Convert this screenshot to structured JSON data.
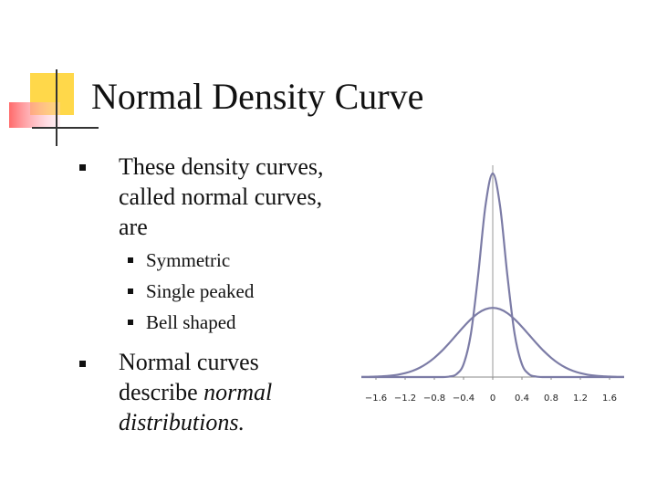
{
  "header": {
    "title": "Normal Density Curve"
  },
  "bullets": [
    {
      "lines": [
        "These density curves,",
        "called normal curves,",
        "are"
      ],
      "sub": [
        "Symmetric",
        "Single peaked",
        "Bell shaped"
      ]
    },
    {
      "lines": [
        {
          "text": "Normal curves"
        },
        {
          "text": "describe",
          "italic_text": "normal"
        },
        {
          "italic_text": "distributions."
        }
      ]
    }
  ],
  "chart_data": {
    "type": "line",
    "x": [
      -1.8,
      -1.7,
      -1.6,
      -1.5,
      -1.4,
      -1.3,
      -1.2,
      -1.1,
      -1.0,
      -0.9,
      -0.8,
      -0.7,
      -0.6,
      -0.5,
      -0.4,
      -0.3,
      -0.2,
      -0.1,
      0,
      0.1,
      0.2,
      0.3,
      0.4,
      0.5,
      0.6,
      0.7,
      0.8,
      0.9,
      1.0,
      1.1,
      1.2,
      1.3,
      1.4,
      1.5,
      1.6,
      1.7,
      1.8
    ],
    "series": [
      {
        "color": "#7c7ca6",
        "values": [
          0.001,
          0.002,
          0.005,
          0.009,
          0.016,
          0.027,
          0.045,
          0.071,
          0.108,
          0.158,
          0.222,
          0.299,
          0.388,
          0.484,
          0.579,
          0.666,
          0.737,
          0.782,
          0.798,
          0.782,
          0.737,
          0.666,
          0.579,
          0.484,
          0.388,
          0.299,
          0.222,
          0.158,
          0.108,
          0.071,
          0.045,
          0.027,
          0.016,
          0.009,
          0.005,
          0.002,
          0.001
        ]
      },
      {
        "color": "#7c7ca6",
        "values": [
          0,
          0,
          0,
          0,
          0,
          0,
          0,
          0,
          0,
          0,
          0,
          0,
          0.005,
          0.031,
          0.147,
          0.495,
          1.175,
          1.974,
          2.347,
          1.974,
          1.175,
          0.495,
          0.147,
          0.031,
          0.005,
          0,
          0,
          0,
          0,
          0,
          0,
          0,
          0,
          0,
          0,
          0,
          0
        ]
      }
    ],
    "xlim": [
      -1.8,
      1.8
    ],
    "ylim": [
      0,
      2.4
    ],
    "xticks": [
      {
        "value": -1.6,
        "label": "−1.6"
      },
      {
        "value": -1.2,
        "label": "−1.2"
      },
      {
        "value": -0.8,
        "label": "−0.8"
      },
      {
        "value": -0.4,
        "label": "−0.4"
      },
      0,
      0.4,
      0.8,
      1.2,
      1.6
    ]
  }
}
